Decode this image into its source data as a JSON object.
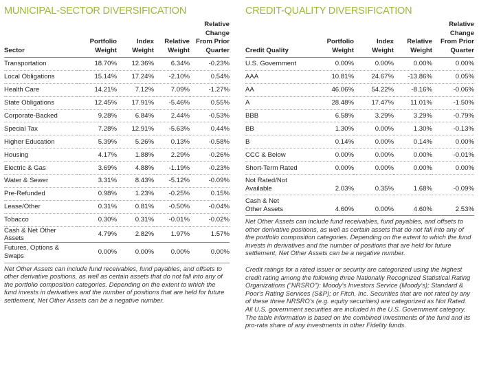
{
  "municipal": {
    "title": "MUNICIPAL-SECTOR DIVERSIFICATION",
    "headers": [
      "Sector",
      "Portfolio Weight",
      "Index Weight",
      "Relative Weight",
      "Relative Change From Prior Quarter"
    ],
    "rows": [
      [
        "Transportation",
        "18.70%",
        "12.36%",
        "6.34%",
        "-0.23%"
      ],
      [
        "Local Obligations",
        "15.14%",
        "17.24%",
        "-2.10%",
        "0.54%"
      ],
      [
        "Health Care",
        "14.21%",
        "7.12%",
        "7.09%",
        "-1.27%"
      ],
      [
        "State Obligations",
        "12.45%",
        "17.91%",
        "-5.46%",
        "0.55%"
      ],
      [
        "Corporate-Backed",
        "9.28%",
        "6.84%",
        "2.44%",
        "-0.53%"
      ],
      [
        "Special Tax",
        "7.28%",
        "12.91%",
        "-5.63%",
        "0.44%"
      ],
      [
        "Higher Education",
        "5.39%",
        "5.26%",
        "0.13%",
        "-0.58%"
      ],
      [
        "Housing",
        "4.17%",
        "1.88%",
        "2.29%",
        "-0.26%"
      ],
      [
        "Electric & Gas",
        "3.69%",
        "4.88%",
        "-1.19%",
        "-0.23%"
      ],
      [
        "Water & Sewer",
        "3.31%",
        "8.43%",
        "-5.12%",
        "-0.09%"
      ],
      [
        "Pre-Refunded",
        "0.98%",
        "1.23%",
        "-0.25%",
        "0.15%"
      ],
      [
        "Lease/Other",
        "0.31%",
        "0.81%",
        "-0.50%",
        "-0.04%"
      ],
      [
        "Tobacco",
        "0.30%",
        "0.31%",
        "-0.01%",
        "-0.02%"
      ],
      [
        "Cash & Net Other Assets",
        "4.79%",
        "2.82%",
        "1.97%",
        "1.57%"
      ],
      [
        "Futures, Options & Swaps",
        "0.00%",
        "0.00%",
        "0.00%",
        "0.00%"
      ]
    ],
    "note": "Net Other Assets can include fund receivables, fund payables, and offsets to other derivative positions, as well as certain assets that do not fall into any of the portfolio composition categories. Depending on the extent to which the fund invests in derivatives and the number of positions that are held for future settlement, Net Other Assets can be a negative number."
  },
  "credit": {
    "title": "CREDIT-QUALITY DIVERSIFICATION",
    "headers": [
      "Credit Quality",
      "Portfolio Weight",
      "Index Weight",
      "Relative Weight",
      "Relative Change From Prior Quarter"
    ],
    "rows": [
      [
        "U.S. Government",
        "0.00%",
        "0.00%",
        "0.00%",
        "0.00%"
      ],
      [
        "AAA",
        "10.81%",
        "24.67%",
        "-13.86%",
        "0.05%"
      ],
      [
        "AA",
        "46.06%",
        "54.22%",
        "-8.16%",
        "-0.06%"
      ],
      [
        "A",
        "28.48%",
        "17.47%",
        "11.01%",
        "-1.50%"
      ],
      [
        "BBB",
        "6.58%",
        "3.29%",
        "3.29%",
        "-0.79%"
      ],
      [
        "BB",
        "1.30%",
        "0.00%",
        "1.30%",
        "-0.13%"
      ],
      [
        "B",
        "0.14%",
        "0.00%",
        "0.14%",
        "0.00%"
      ],
      [
        "CCC & Below",
        "0.00%",
        "0.00%",
        "0.00%",
        "-0.01%"
      ],
      [
        "Short-Term Rated",
        "0.00%",
        "0.00%",
        "0.00%",
        "0.00%"
      ],
      [
        "Not Rated/Not Available",
        "2.03%",
        "0.35%",
        "1.68%",
        "-0.09%"
      ],
      [
        "Cash & Net Other Assets",
        "4.60%",
        "0.00%",
        "4.60%",
        "2.53%"
      ]
    ],
    "note": "Net Other Assets can include fund receivables, fund payables, and offsets to other derivative positions, as well as certain assets that do not fall into any of the portfolio composition categories. Depending on the extent to which the fund invests in derivatives and the number of positions that are held for future settlement, Net Other Assets can be a negative number.",
    "note2": "Credit ratings for a rated issuer or security are categorized using the highest credit rating among the following three Nationally Recognized Statistical Rating Organizations (\"NRSRO\"): Moody's Investors Service (Moody's); Standard & Poor's Rating Services (S&P); or Fitch, Inc. Securities that are not rated by any of these three NRSRO's (e.g. equity securities) are categorized as Not Rated. All U.S. government securities are included in the U.S. Government category. The table information is based on the combined investments of the fund and its pro-rata share of any investments in other Fidelity funds."
  }
}
